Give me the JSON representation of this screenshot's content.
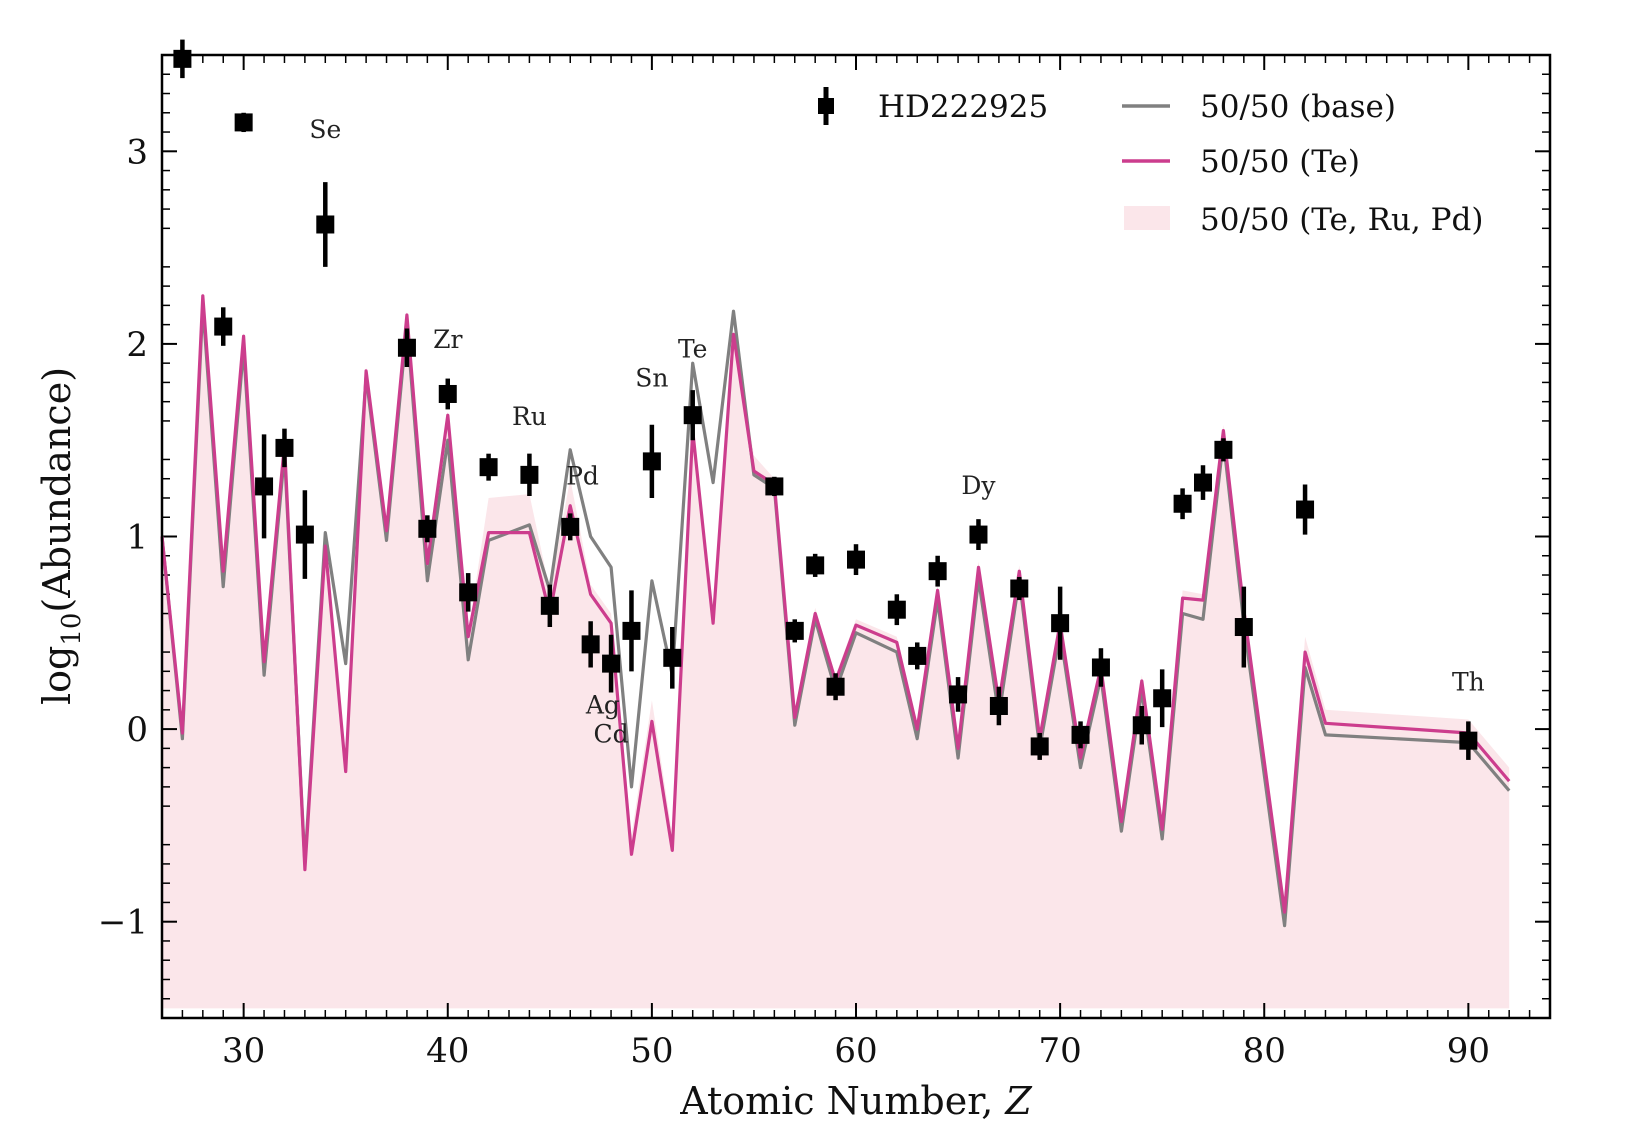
{
  "chart_data": {
    "type": "scatter",
    "xlabel": "Atomic Number, ",
    "xlabel_var": "Z",
    "ylabel_prefix": "log",
    "ylabel_sub": "10",
    "ylabel_suffix": "(Abundance)",
    "xlim": [
      26,
      94
    ],
    "ylim": [
      -1.5,
      3.5
    ],
    "xticks": [
      30,
      40,
      50,
      60,
      70,
      80,
      90
    ],
    "yticks": [
      -1,
      0,
      1,
      2,
      3
    ],
    "ytick_labels": [
      "−1",
      "0",
      "1",
      "2",
      "3"
    ],
    "legend_position": "top-right",
    "colors": {
      "observed": "#000000",
      "base": "#808080",
      "te": "#cc3d8d",
      "band": "#fbe6ea"
    },
    "legend": {
      "observed": "HD222925",
      "base": "50/50 (base)",
      "te": "50/50 (Te)",
      "band": "50/50 (Te, Ru, Pd)"
    },
    "observed": [
      {
        "z": 27,
        "y": 3.48,
        "err": 0.1
      },
      {
        "z": 29,
        "y": 2.09,
        "err": 0.1
      },
      {
        "z": 30,
        "y": 3.15,
        "err": 0.05
      },
      {
        "z": 31,
        "y": 1.26,
        "err": 0.27
      },
      {
        "z": 32,
        "y": 1.46,
        "err": 0.1
      },
      {
        "z": 33,
        "y": 1.01,
        "err": 0.23
      },
      {
        "z": 34,
        "y": 2.62,
        "err": 0.22
      },
      {
        "z": 38,
        "y": 1.98,
        "err": 0.1
      },
      {
        "z": 39,
        "y": 1.04,
        "err": 0.07
      },
      {
        "z": 40,
        "y": 1.74,
        "err": 0.08
      },
      {
        "z": 41,
        "y": 0.71,
        "err": 0.1
      },
      {
        "z": 42,
        "y": 1.36,
        "err": 0.07
      },
      {
        "z": 44,
        "y": 1.32,
        "err": 0.11
      },
      {
        "z": 45,
        "y": 0.64,
        "err": 0.11
      },
      {
        "z": 46,
        "y": 1.05,
        "err": 0.07
      },
      {
        "z": 47,
        "y": 0.44,
        "err": 0.12
      },
      {
        "z": 48,
        "y": 0.34,
        "err": 0.15
      },
      {
        "z": 49,
        "y": 0.51,
        "err": 0.21
      },
      {
        "z": 50,
        "y": 1.39,
        "err": 0.19
      },
      {
        "z": 51,
        "y": 0.37,
        "err": 0.16
      },
      {
        "z": 52,
        "y": 1.63,
        "err": 0.13
      },
      {
        "z": 56,
        "y": 1.26,
        "err": 0.05
      },
      {
        "z": 57,
        "y": 0.51,
        "err": 0.06
      },
      {
        "z": 58,
        "y": 0.85,
        "err": 0.06
      },
      {
        "z": 59,
        "y": 0.22,
        "err": 0.07
      },
      {
        "z": 60,
        "y": 0.88,
        "err": 0.08
      },
      {
        "z": 62,
        "y": 0.62,
        "err": 0.08
      },
      {
        "z": 63,
        "y": 0.38,
        "err": 0.07
      },
      {
        "z": 64,
        "y": 0.82,
        "err": 0.08
      },
      {
        "z": 65,
        "y": 0.18,
        "err": 0.09
      },
      {
        "z": 66,
        "y": 1.01,
        "err": 0.08
      },
      {
        "z": 67,
        "y": 0.12,
        "err": 0.1
      },
      {
        "z": 68,
        "y": 0.73,
        "err": 0.06
      },
      {
        "z": 69,
        "y": -0.09,
        "err": 0.07
      },
      {
        "z": 70,
        "y": 0.55,
        "err": 0.19
      },
      {
        "z": 71,
        "y": -0.03,
        "err": 0.07
      },
      {
        "z": 72,
        "y": 0.32,
        "err": 0.1
      },
      {
        "z": 74,
        "y": 0.02,
        "err": 0.1
      },
      {
        "z": 75,
        "y": 0.16,
        "err": 0.15
      },
      {
        "z": 76,
        "y": 1.17,
        "err": 0.08
      },
      {
        "z": 77,
        "y": 1.28,
        "err": 0.09
      },
      {
        "z": 78,
        "y": 1.45,
        "err": 0.06
      },
      {
        "z": 79,
        "y": 0.53,
        "err": 0.21
      },
      {
        "z": 82,
        "y": 1.14,
        "err": 0.13
      },
      {
        "z": 90,
        "y": -0.06,
        "err": 0.1
      }
    ],
    "base": [
      [
        26,
        1.0
      ],
      [
        27,
        -0.05
      ],
      [
        28,
        2.2
      ],
      [
        29,
        0.74
      ],
      [
        30,
        1.98
      ],
      [
        31,
        0.28
      ],
      [
        32,
        1.43
      ],
      [
        33,
        -0.7
      ],
      [
        34,
        1.02
      ],
      [
        35,
        0.34
      ],
      [
        36,
        1.83
      ],
      [
        37,
        0.98
      ],
      [
        38,
        2.1
      ],
      [
        39,
        0.77
      ],
      [
        40,
        1.5
      ],
      [
        41,
        0.36
      ],
      [
        42,
        0.98
      ],
      [
        44,
        1.06
      ],
      [
        45,
        0.72
      ],
      [
        46,
        1.45
      ],
      [
        47,
        1.0
      ],
      [
        48,
        0.84
      ],
      [
        49,
        -0.3
      ],
      [
        50,
        0.77
      ],
      [
        51,
        0.28
      ],
      [
        52,
        1.9
      ],
      [
        53,
        1.28
      ],
      [
        54,
        2.17
      ],
      [
        55,
        1.32
      ],
      [
        56,
        1.25
      ],
      [
        57,
        0.02
      ],
      [
        58,
        0.57
      ],
      [
        59,
        0.2
      ],
      [
        60,
        0.5
      ],
      [
        62,
        0.4
      ],
      [
        63,
        -0.05
      ],
      [
        64,
        0.67
      ],
      [
        65,
        -0.15
      ],
      [
        66,
        0.78
      ],
      [
        67,
        0.07
      ],
      [
        68,
        0.78
      ],
      [
        69,
        -0.1
      ],
      [
        70,
        0.5
      ],
      [
        71,
        -0.2
      ],
      [
        72,
        0.27
      ],
      [
        73,
        -0.53
      ],
      [
        74,
        0.2
      ],
      [
        75,
        -0.57
      ],
      [
        76,
        0.6
      ],
      [
        77,
        0.57
      ],
      [
        78,
        1.5
      ],
      [
        79,
        0.55
      ],
      [
        81,
        -1.02
      ],
      [
        82,
        0.32
      ],
      [
        83,
        -0.03
      ],
      [
        90,
        -0.07
      ],
      [
        92,
        -0.32
      ]
    ],
    "te": [
      [
        26,
        1.0
      ],
      [
        27,
        -0.02
      ],
      [
        28,
        2.25
      ],
      [
        29,
        0.82
      ],
      [
        30,
        2.04
      ],
      [
        31,
        0.35
      ],
      [
        32,
        1.48
      ],
      [
        33,
        -0.73
      ],
      [
        34,
        0.95
      ],
      [
        35,
        -0.22
      ],
      [
        36,
        1.86
      ],
      [
        37,
        1.03
      ],
      [
        38,
        2.15
      ],
      [
        39,
        0.86
      ],
      [
        40,
        1.63
      ],
      [
        41,
        0.48
      ],
      [
        42,
        1.02
      ],
      [
        44,
        1.02
      ],
      [
        45,
        0.6
      ],
      [
        46,
        1.16
      ],
      [
        47,
        0.7
      ],
      [
        48,
        0.55
      ],
      [
        49,
        -0.65
      ],
      [
        50,
        0.04
      ],
      [
        51,
        -0.63
      ],
      [
        52,
        1.55
      ],
      [
        53,
        0.55
      ],
      [
        54,
        2.05
      ],
      [
        55,
        1.34
      ],
      [
        56,
        1.27
      ],
      [
        57,
        0.06
      ],
      [
        58,
        0.6
      ],
      [
        59,
        0.25
      ],
      [
        60,
        0.54
      ],
      [
        62,
        0.45
      ],
      [
        63,
        0.0
      ],
      [
        64,
        0.72
      ],
      [
        65,
        -0.1
      ],
      [
        66,
        0.84
      ],
      [
        67,
        0.14
      ],
      [
        68,
        0.82
      ],
      [
        69,
        -0.05
      ],
      [
        70,
        0.55
      ],
      [
        71,
        -0.15
      ],
      [
        72,
        0.32
      ],
      [
        73,
        -0.48
      ],
      [
        74,
        0.25
      ],
      [
        75,
        -0.52
      ],
      [
        76,
        0.68
      ],
      [
        77,
        0.67
      ],
      [
        78,
        1.55
      ],
      [
        79,
        0.62
      ],
      [
        81,
        -0.95
      ],
      [
        82,
        0.4
      ],
      [
        83,
        0.03
      ],
      [
        90,
        -0.02
      ],
      [
        92,
        -0.27
      ]
    ],
    "band_upper": [
      [
        26,
        1.02
      ],
      [
        27,
        0.02
      ],
      [
        28,
        2.27
      ],
      [
        29,
        0.85
      ],
      [
        30,
        2.06
      ],
      [
        31,
        0.37
      ],
      [
        32,
        1.5
      ],
      [
        33,
        -0.7
      ],
      [
        34,
        0.97
      ],
      [
        35,
        -0.2
      ],
      [
        36,
        1.88
      ],
      [
        37,
        1.05
      ],
      [
        38,
        2.17
      ],
      [
        39,
        0.88
      ],
      [
        40,
        1.65
      ],
      [
        41,
        0.5
      ],
      [
        42,
        1.2
      ],
      [
        44,
        1.22
      ],
      [
        45,
        0.72
      ],
      [
        46,
        1.3
      ],
      [
        47,
        0.75
      ],
      [
        48,
        0.6
      ],
      [
        49,
        -0.55
      ],
      [
        50,
        0.15
      ],
      [
        51,
        -0.55
      ],
      [
        52,
        1.6
      ],
      [
        53,
        0.6
      ],
      [
        54,
        2.07
      ],
      [
        55,
        1.42
      ],
      [
        56,
        1.3
      ],
      [
        57,
        0.1
      ],
      [
        58,
        0.63
      ],
      [
        59,
        0.28
      ],
      [
        60,
        0.57
      ],
      [
        62,
        0.48
      ],
      [
        63,
        0.03
      ],
      [
        64,
        0.75
      ],
      [
        65,
        -0.07
      ],
      [
        66,
        0.87
      ],
      [
        67,
        0.17
      ],
      [
        68,
        0.85
      ],
      [
        69,
        -0.02
      ],
      [
        70,
        0.58
      ],
      [
        71,
        -0.12
      ],
      [
        72,
        0.35
      ],
      [
        73,
        -0.45
      ],
      [
        74,
        0.28
      ],
      [
        75,
        -0.49
      ],
      [
        76,
        0.72
      ],
      [
        77,
        0.7
      ],
      [
        78,
        1.58
      ],
      [
        79,
        0.65
      ],
      [
        81,
        -0.9
      ],
      [
        82,
        0.48
      ],
      [
        83,
        0.1
      ],
      [
        90,
        0.05
      ],
      [
        92,
        -0.2
      ]
    ],
    "band_lower": [
      [
        92,
        -1.45
      ],
      [
        26,
        -1.45
      ]
    ],
    "element_labels": [
      {
        "text": "Se",
        "z": 34,
        "y": 3.07
      },
      {
        "text": "Zr",
        "z": 40,
        "y": 1.98
      },
      {
        "text": "Ru",
        "z": 44,
        "y": 1.58
      },
      {
        "text": "Pd",
        "z": 46.6,
        "y": 1.27
      },
      {
        "text": "Ag",
        "z": 47.6,
        "y": 0.08
      },
      {
        "text": "Cd",
        "z": 48.0,
        "y": -0.07
      },
      {
        "text": "Sn",
        "z": 50,
        "y": 1.78
      },
      {
        "text": "Te",
        "z": 52,
        "y": 1.93
      },
      {
        "text": "Dy",
        "z": 66,
        "y": 1.22
      },
      {
        "text": "Th",
        "z": 90,
        "y": 0.2
      }
    ]
  }
}
